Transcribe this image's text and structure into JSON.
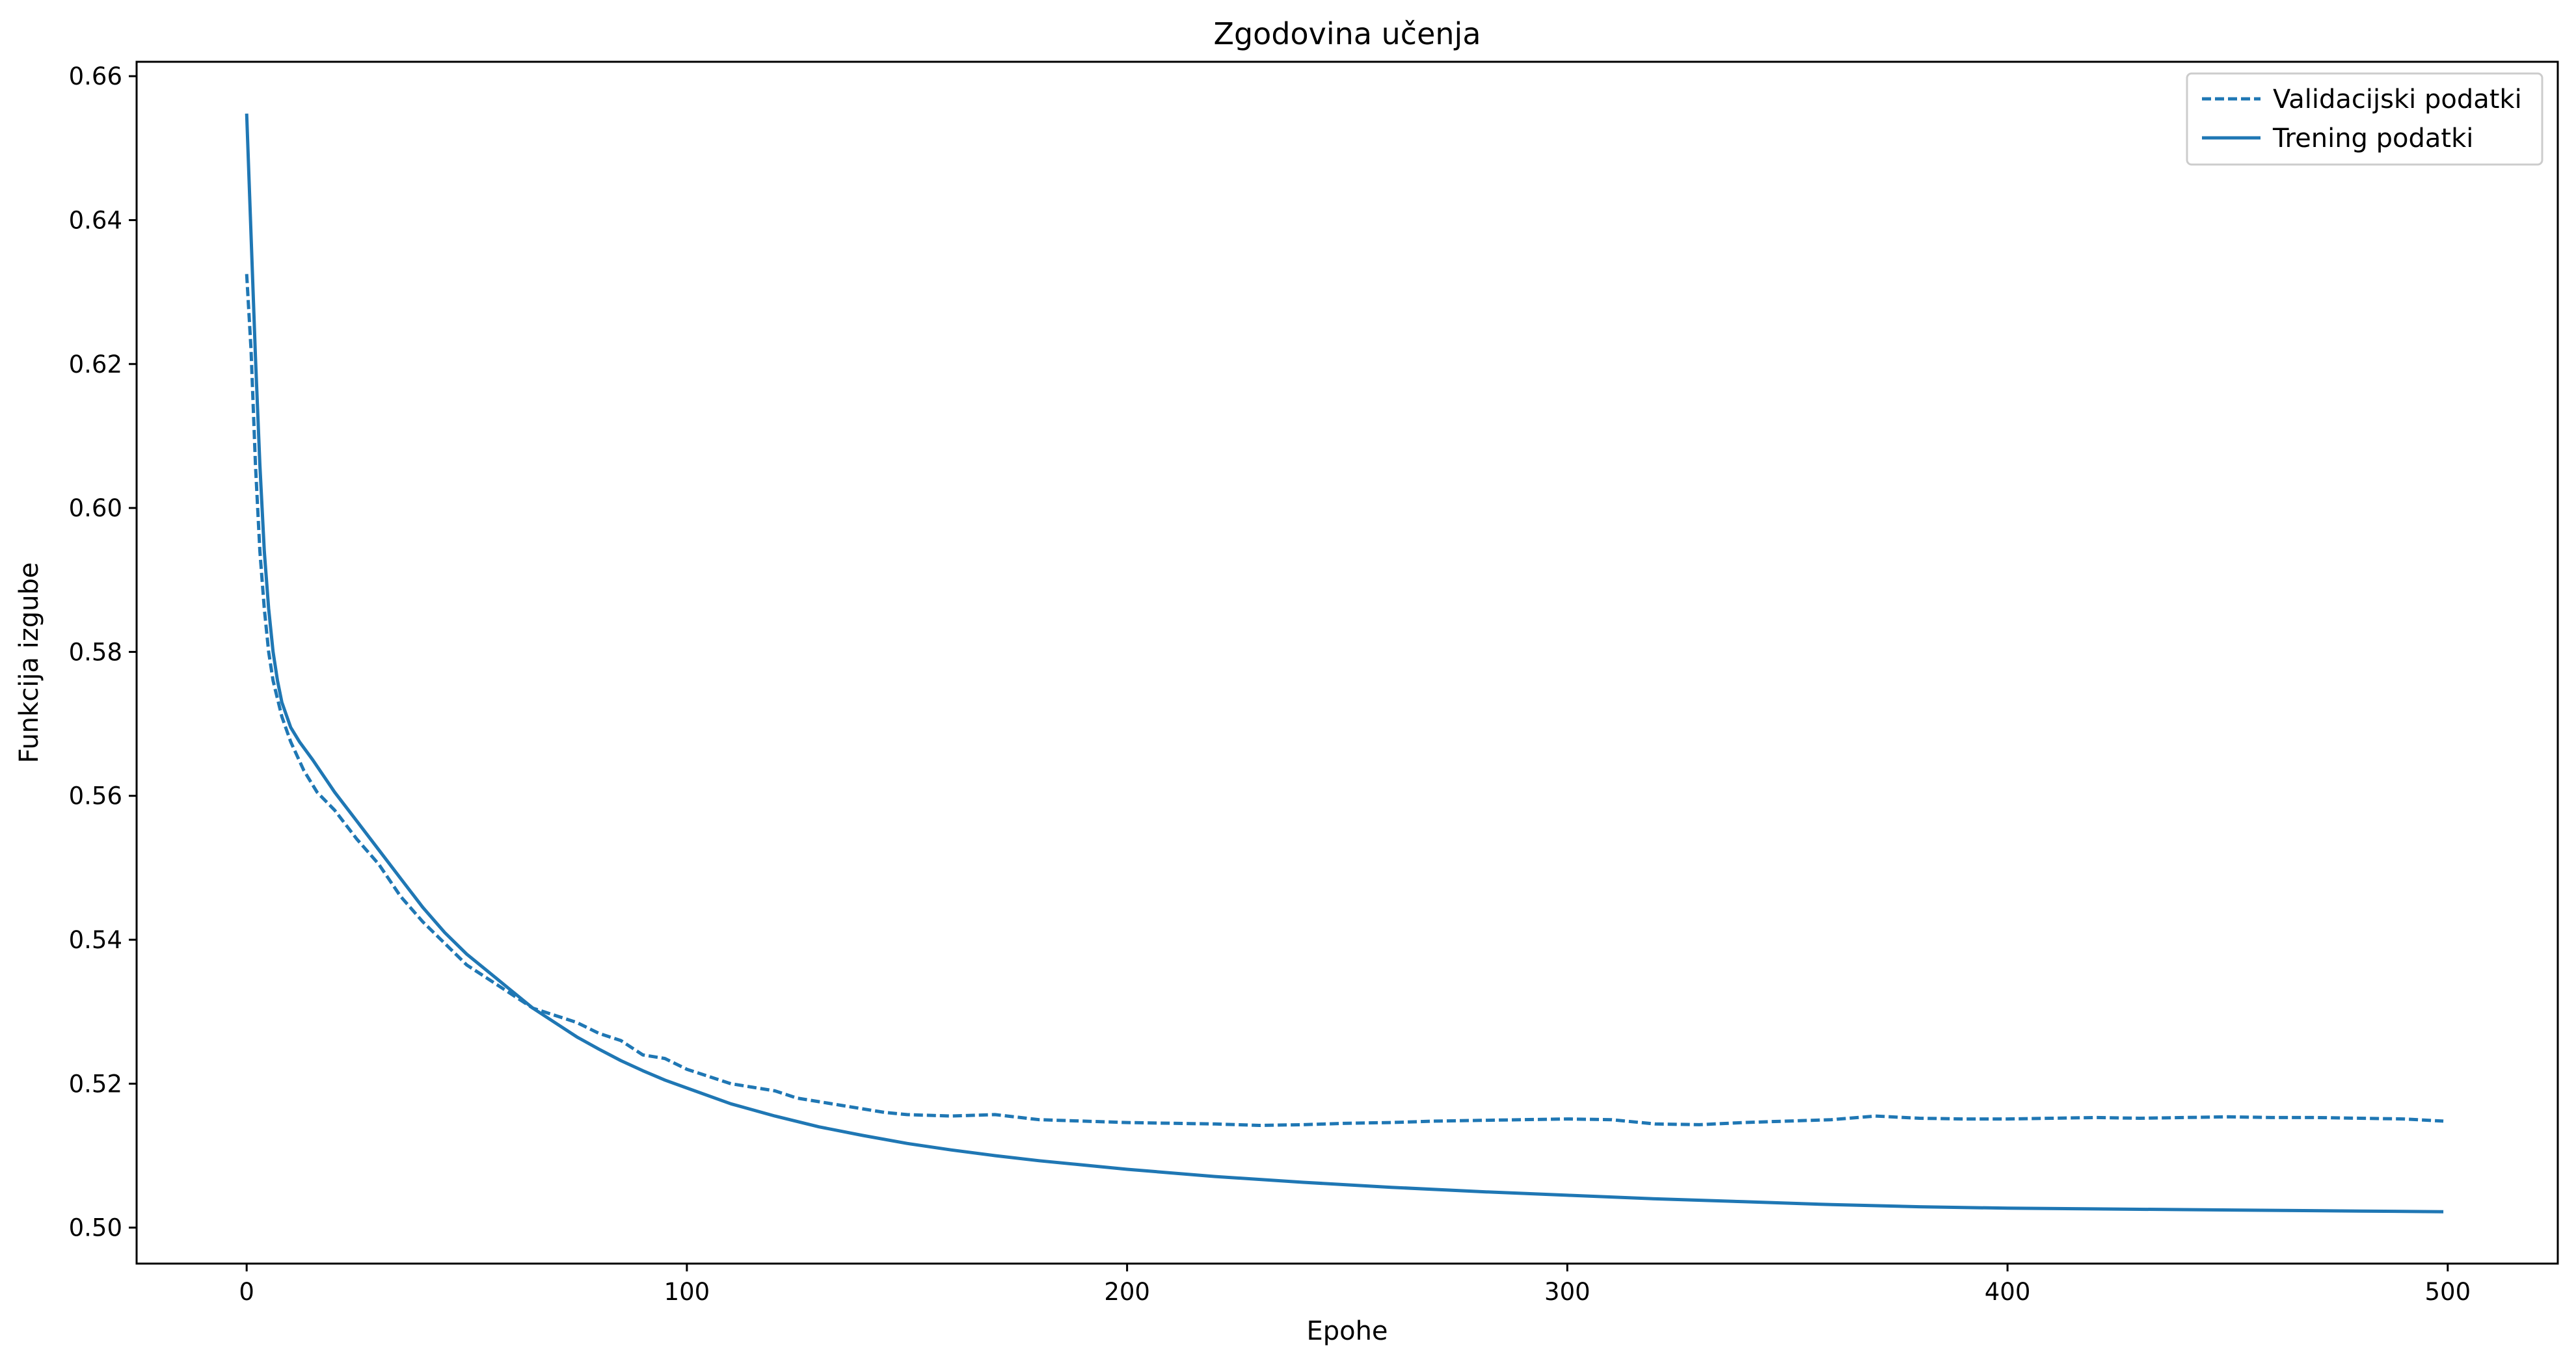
{
  "chart_data": {
    "type": "line",
    "title": "Zgodovina učenja",
    "xlabel": "Epohe",
    "ylabel": "Funkcija izgube",
    "xlim": [
      -25,
      525
    ],
    "ylim": [
      0.495,
      0.662
    ],
    "x_ticks": [
      0,
      100,
      200,
      300,
      400,
      500
    ],
    "y_ticks": [
      0.5,
      0.52,
      0.54,
      0.56,
      0.58,
      0.6,
      0.62,
      0.64,
      0.66
    ],
    "grid": false,
    "legend_position": "top-right",
    "series": [
      {
        "name": "Validacijski podatki",
        "style": "dashed",
        "color": "#1f77b4",
        "points": [
          [
            0,
            0.6325
          ],
          [
            1,
            0.622
          ],
          [
            2,
            0.606
          ],
          [
            3,
            0.594
          ],
          [
            4,
            0.586
          ],
          [
            5,
            0.58
          ],
          [
            6,
            0.576
          ],
          [
            8,
            0.571
          ],
          [
            10,
            0.5675
          ],
          [
            13,
            0.5635
          ],
          [
            16,
            0.5605
          ],
          [
            20,
            0.558
          ],
          [
            25,
            0.554
          ],
          [
            30,
            0.5505
          ],
          [
            35,
            0.546
          ],
          [
            40,
            0.5425
          ],
          [
            45,
            0.5395
          ],
          [
            50,
            0.5365
          ],
          [
            55,
            0.5345
          ],
          [
            60,
            0.5325
          ],
          [
            65,
            0.5305
          ],
          [
            70,
            0.5295
          ],
          [
            75,
            0.5285
          ],
          [
            80,
            0.527
          ],
          [
            85,
            0.526
          ],
          [
            90,
            0.524
          ],
          [
            95,
            0.5235
          ],
          [
            100,
            0.522
          ],
          [
            105,
            0.521
          ],
          [
            110,
            0.52
          ],
          [
            115,
            0.5195
          ],
          [
            120,
            0.519
          ],
          [
            125,
            0.518
          ],
          [
            130,
            0.5175
          ],
          [
            135,
            0.517
          ],
          [
            140,
            0.5165
          ],
          [
            145,
            0.516
          ],
          [
            150,
            0.5157
          ],
          [
            160,
            0.5155
          ],
          [
            170,
            0.5157
          ],
          [
            180,
            0.515
          ],
          [
            190,
            0.5148
          ],
          [
            200,
            0.5146
          ],
          [
            210,
            0.5145
          ],
          [
            220,
            0.5144
          ],
          [
            230,
            0.5142
          ],
          [
            240,
            0.5143
          ],
          [
            250,
            0.5145
          ],
          [
            260,
            0.5146
          ],
          [
            270,
            0.5148
          ],
          [
            280,
            0.5149
          ],
          [
            290,
            0.515
          ],
          [
            300,
            0.5151
          ],
          [
            310,
            0.515
          ],
          [
            320,
            0.5144
          ],
          [
            330,
            0.5143
          ],
          [
            340,
            0.5146
          ],
          [
            350,
            0.5148
          ],
          [
            360,
            0.515
          ],
          [
            370,
            0.5155
          ],
          [
            380,
            0.5152
          ],
          [
            390,
            0.5151
          ],
          [
            400,
            0.5151
          ],
          [
            410,
            0.5152
          ],
          [
            420,
            0.5153
          ],
          [
            430,
            0.5152
          ],
          [
            440,
            0.5153
          ],
          [
            450,
            0.5154
          ],
          [
            460,
            0.5153
          ],
          [
            470,
            0.5153
          ],
          [
            480,
            0.5152
          ],
          [
            490,
            0.5151
          ],
          [
            499,
            0.5148
          ]
        ]
      },
      {
        "name": "Trening podatki",
        "style": "solid",
        "color": "#1f77b4",
        "points": [
          [
            0,
            0.6548
          ],
          [
            1,
            0.638
          ],
          [
            2,
            0.621
          ],
          [
            3,
            0.606
          ],
          [
            4,
            0.594
          ],
          [
            5,
            0.586
          ],
          [
            6,
            0.58
          ],
          [
            7,
            0.576
          ],
          [
            8,
            0.573
          ],
          [
            10,
            0.5695
          ],
          [
            12,
            0.5675
          ],
          [
            15,
            0.565
          ],
          [
            20,
            0.5605
          ],
          [
            25,
            0.5565
          ],
          [
            30,
            0.5525
          ],
          [
            35,
            0.5485
          ],
          [
            40,
            0.5445
          ],
          [
            45,
            0.541
          ],
          [
            50,
            0.538
          ],
          [
            55,
            0.5355
          ],
          [
            60,
            0.533
          ],
          [
            65,
            0.5305
          ],
          [
            70,
            0.5285
          ],
          [
            75,
            0.5265
          ],
          [
            80,
            0.5248
          ],
          [
            85,
            0.5232
          ],
          [
            90,
            0.5218
          ],
          [
            95,
            0.5205
          ],
          [
            100,
            0.5194
          ],
          [
            110,
            0.5172
          ],
          [
            120,
            0.5155
          ],
          [
            130,
            0.514
          ],
          [
            140,
            0.5128
          ],
          [
            150,
            0.5117
          ],
          [
            160,
            0.5108
          ],
          [
            170,
            0.51
          ],
          [
            180,
            0.5093
          ],
          [
            190,
            0.5087
          ],
          [
            200,
            0.5081
          ],
          [
            220,
            0.5071
          ],
          [
            240,
            0.5063
          ],
          [
            260,
            0.5056
          ],
          [
            280,
            0.505
          ],
          [
            300,
            0.5045
          ],
          [
            320,
            0.504
          ],
          [
            340,
            0.5036
          ],
          [
            360,
            0.5032
          ],
          [
            380,
            0.5029
          ],
          [
            400,
            0.5027
          ],
          [
            420,
            0.5026
          ],
          [
            440,
            0.5025
          ],
          [
            460,
            0.5024
          ],
          [
            480,
            0.5023
          ],
          [
            499,
            0.5022
          ]
        ]
      }
    ]
  }
}
